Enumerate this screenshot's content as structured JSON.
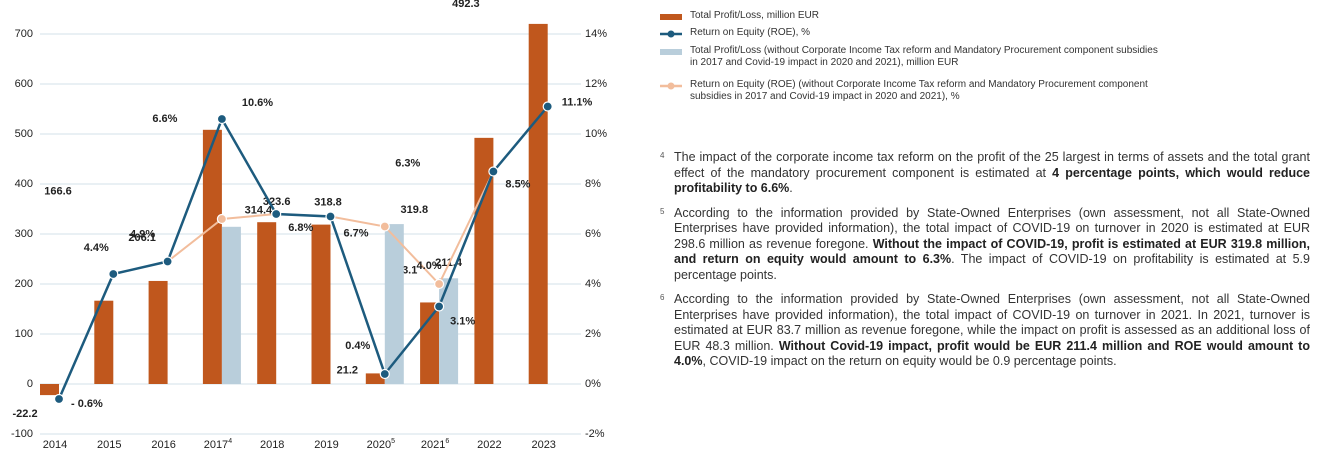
{
  "chart_data": {
    "type": "bar-line",
    "categories": [
      "2014",
      "2015",
      "2016",
      "2017",
      "2018",
      "2019",
      "2020",
      "2021",
      "2022",
      "2023"
    ],
    "category_footnotes": [
      null,
      null,
      null,
      "4",
      null,
      null,
      "5",
      "6",
      null,
      null
    ],
    "ylim": [
      -100,
      750
    ],
    "yticks": [
      -100,
      0,
      100,
      200,
      300,
      400,
      500,
      600,
      700
    ],
    "y2lim": [
      -2,
      15
    ],
    "y2ticks": [
      {
        "value": -2,
        "label": "-2%"
      },
      {
        "value": 0,
        "label": "0%"
      },
      {
        "value": 2,
        "label": "2%"
      },
      {
        "value": 4,
        "label": "4%"
      },
      {
        "value": 6,
        "label": "6%"
      },
      {
        "value": 8,
        "label": "8%"
      },
      {
        "value": 10,
        "label": "10%"
      },
      {
        "value": 12,
        "label": "12%"
      },
      {
        "value": 14,
        "label": "14%"
      }
    ],
    "grid": true,
    "series": [
      {
        "name": "Total Profit/Loss, million EUR",
        "kind": "bar",
        "color": "#c0571d",
        "values": [
          -22.2,
          166.6,
          206.1,
          508.4,
          323.6,
          318.8,
          21.2,
          163.1,
          492.3,
          720.2
        ]
      },
      {
        "name": "Return on Equity (ROE), %",
        "kind": "line",
        "axis": "y2",
        "color": "#1d5b7e",
        "values": [
          -0.6,
          4.4,
          4.9,
          10.6,
          6.8,
          6.7,
          0.4,
          3.1,
          8.5,
          11.1
        ],
        "value_labels": [
          "- 0.6%",
          "4.4%",
          "4.9%",
          "10.6%",
          "6.8%",
          "6.7%",
          "0.4%",
          "3.1%",
          "8.5%",
          "11.1%"
        ]
      },
      {
        "name": "Total Profit/Loss (without Corporate Income Tax reform and Mandatory Procurement component subsidies in 2017 and Covid-19 impact in 2020 and 2021), million EUR",
        "kind": "bar",
        "color": "#b9cedb",
        "values": [
          null,
          null,
          null,
          314.4,
          null,
          null,
          319.8,
          211.4,
          null,
          null
        ]
      },
      {
        "name": "Return on Equity (ROE) (without Corporate Income Tax reform and Mandatory Procurement component subsidies in 2017 and Covid-19 impact in 2020 and 2021), %",
        "kind": "line",
        "axis": "y2",
        "color": "#f2bd9c",
        "values": [
          null,
          null,
          4.9,
          6.6,
          6.8,
          6.7,
          6.3,
          4.0,
          8.5,
          null
        ],
        "value_labels": [
          null,
          null,
          null,
          "6.6%",
          null,
          null,
          "6.3%",
          "4.0%",
          null,
          null
        ]
      }
    ]
  },
  "notes": [
    {
      "number": "4",
      "parts": [
        {
          "text": "The impact of the corporate income tax reform on the profit of the 25 largest in terms of assets and the total grant effect of the mandatory procurement component is estimated at "
        },
        {
          "text": "4 percentage points, which would reduce profitability to 6.6%",
          "bold": true
        },
        {
          "text": "."
        }
      ]
    },
    {
      "number": "5",
      "parts": [
        {
          "text": "According to the information provided by State-Owned Enterprises (own assessment, not all State-Owned Enterprises have provided information), the total impact of COVID-19 on turnover in 2020 is estimated at EUR 298.6 million as revenue foregone. "
        },
        {
          "text": "Without the impact of COVID-19, profit is estimated at EUR 319.8 million, and return on equity would amount to 6.3%",
          "bold": true
        },
        {
          "text": ". The impact of COVID-19 on profitability is estimated at 5.9 percentage points."
        }
      ]
    },
    {
      "number": "6",
      "parts": [
        {
          "text": "According to the information provided by State-Owned Enterprises (own assessment, not all State-Owned Enterprises have provided information), the total impact of COVID-19 on turnover in 2021. In 2021, turnover is estimated at EUR 83.7 million as revenue foregone, while the impact on profit is assessed as an additional loss of EUR 48.3 million. "
        },
        {
          "text": "Without Covid-19 impact, profit would be EUR 211.4 million and ROE would amount to 4.0%",
          "bold": true
        },
        {
          "text": ", COVID-19 impact on  the return on equity would be 0.9 percentage points."
        }
      ]
    }
  ]
}
